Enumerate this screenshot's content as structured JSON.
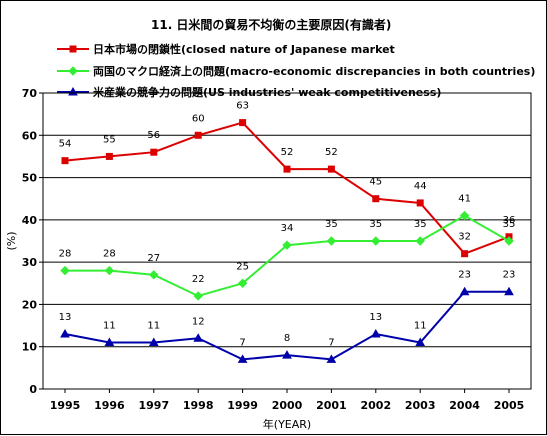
{
  "chart_data": {
    "type": "line",
    "title": "11. 日米間の貿易不均衡の主要原因(有識者)",
    "xlabel": "年(YEAR)",
    "ylabel": "(%)",
    "ylim": [
      0,
      70
    ],
    "yticks": [
      "0",
      "10",
      "20",
      "30",
      "40",
      "50",
      "60",
      "70"
    ],
    "grid": true,
    "legend_position": "top",
    "categories": [
      "1995",
      "1996",
      "1997",
      "1998",
      "1999",
      "2000",
      "2001",
      "2002",
      "2003",
      "2004",
      "2005"
    ],
    "series": [
      {
        "name": "日本市場の閉鎖性(closed nature of Japanese market",
        "color": "#dd0000",
        "marker": "square",
        "values": [
          54,
          55,
          56,
          60,
          63,
          52,
          52,
          45,
          44,
          32,
          36
        ]
      },
      {
        "name": "両国のマクロ経済上の問題(macro-economic discrepancies in both countries)",
        "color": "#33ee33",
        "marker": "diamond",
        "values": [
          28,
          28,
          27,
          22,
          25,
          34,
          35,
          35,
          35,
          41,
          35
        ]
      },
      {
        "name": "米産業の競争力の問題(US industries' weak competitiveness)",
        "color": "#0000aa",
        "marker": "triangle",
        "values": [
          13,
          11,
          11,
          12,
          7,
          8,
          7,
          13,
          11,
          23,
          23
        ]
      }
    ]
  }
}
